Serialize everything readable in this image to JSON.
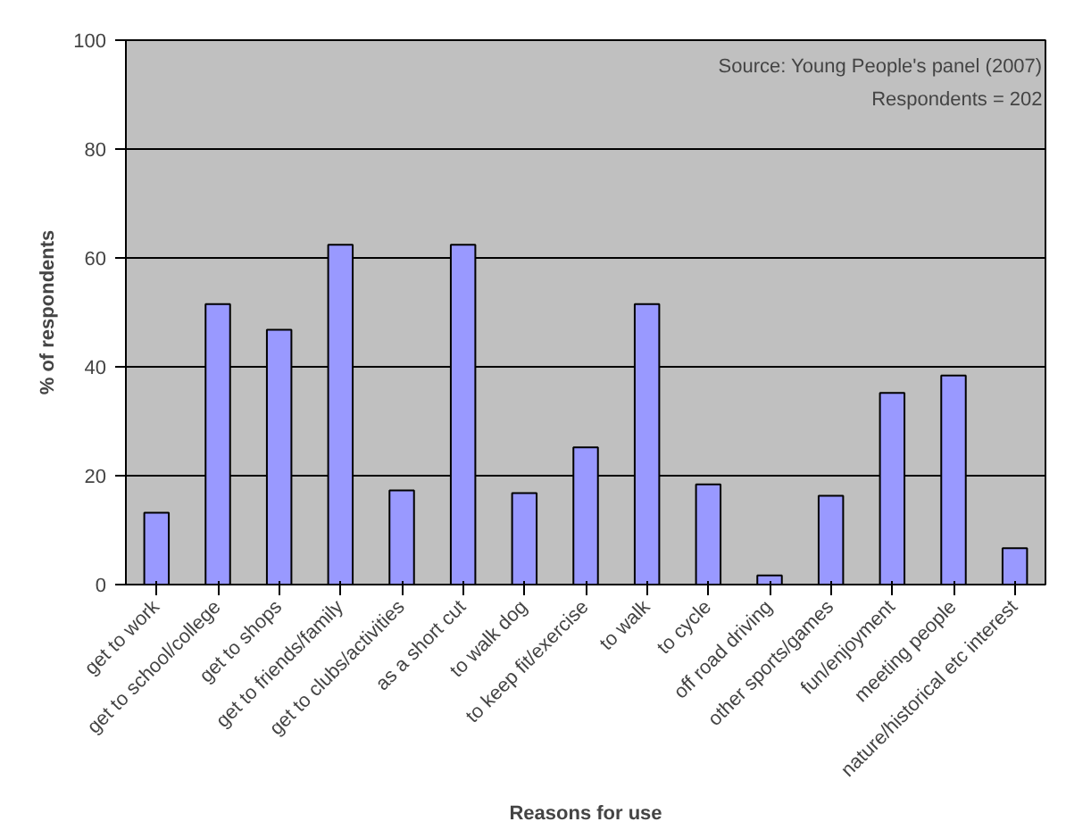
{
  "chart_data": {
    "type": "bar",
    "xlabel": "Reasons for use",
    "ylabel": "% of respondents",
    "categories": [
      "get to work",
      "get to school/college",
      "get to shops",
      "get to friends/family",
      "get to clubs/activities",
      "as a short cut",
      "to walk dog",
      "to keep fit/exercise",
      "to walk",
      "to cycle",
      "off road driving",
      "other sports/games",
      "fun/enjoyment",
      "meeting people",
      "nature/historical etc interest"
    ],
    "values": [
      13.2,
      51.5,
      46.8,
      62.4,
      17.3,
      62.4,
      16.8,
      25.2,
      51.5,
      18.4,
      1.7,
      16.3,
      35.2,
      38.4,
      6.7
    ],
    "color": "#9999ff",
    "ylim": [
      0,
      100
    ],
    "yticks": [
      0,
      20,
      40,
      60,
      80,
      100
    ],
    "grid": "y",
    "annotations": [
      "Source: Young People's panel (2007)",
      "Respondents = 202"
    ]
  }
}
